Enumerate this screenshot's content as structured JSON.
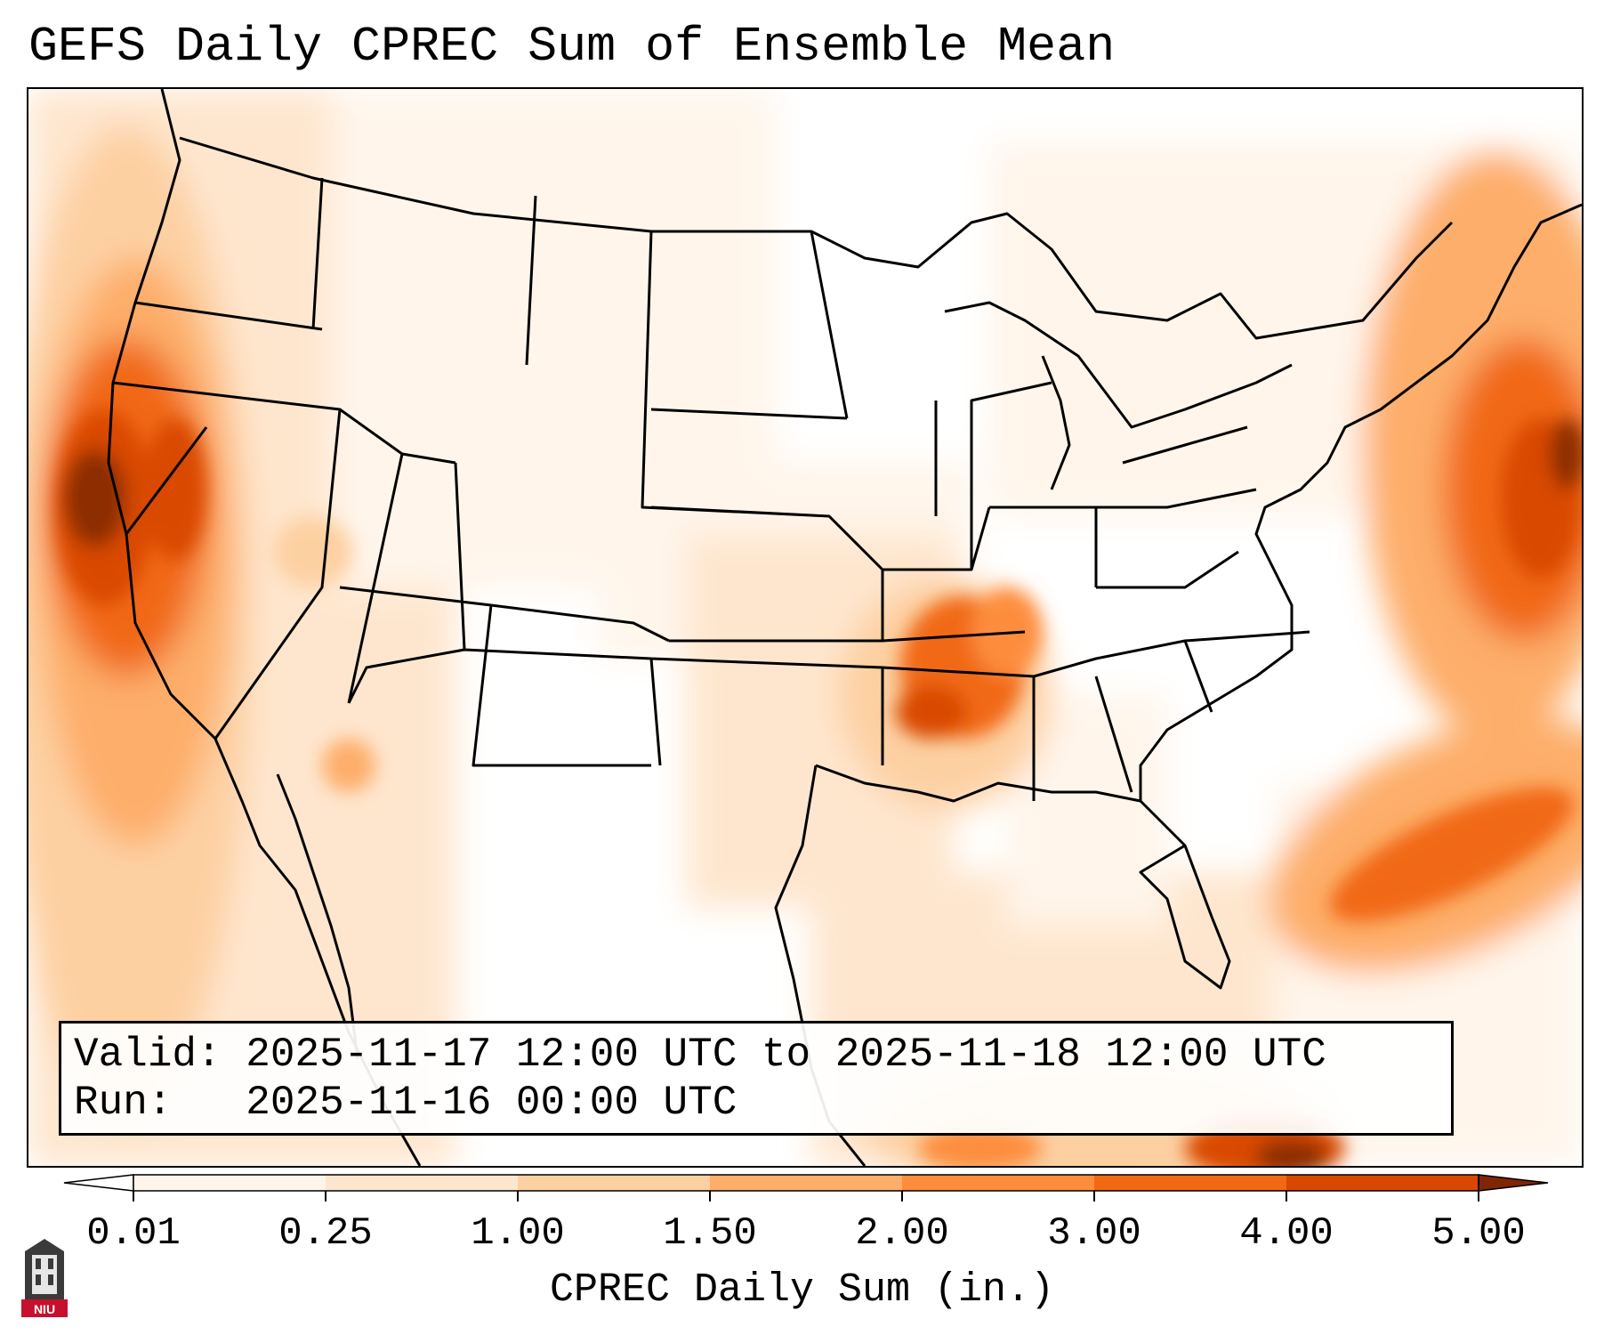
{
  "title": "GEFS Daily CPREC Sum of Ensemble Mean",
  "info": {
    "valid_label": "Valid:",
    "valid_value": "2025-11-17 12:00 UTC to 2025-11-18 12:00 UTC",
    "run_label": "Run:",
    "run_value": "2025-11-16 00:00 UTC"
  },
  "colorbar": {
    "label": "CPREC Daily Sum (in.)",
    "ticks": [
      "0.01",
      "0.25",
      "1.00",
      "1.50",
      "2.00",
      "3.00",
      "4.00",
      "5.00"
    ],
    "colors": [
      "#fff5eb",
      "#fee6ce",
      "#fdd0a2",
      "#fdae6b",
      "#fd8d3c",
      "#f16913",
      "#d94801",
      "#8c2d04"
    ],
    "under_color": "#ffffff",
    "over_color": "#7f2704"
  },
  "logo": {
    "text": "NIU",
    "icon": "university-tower-icon"
  },
  "map": {
    "projection": "lambert-conformal",
    "region": "Continental United States",
    "precip_areas": [
      {
        "region": "Pacific coast off northern California",
        "level": "5.00"
      },
      {
        "region": "Atlantic off New England",
        "level": "4.00"
      },
      {
        "region": "Atlantic east of Southeast coast",
        "level": "3.00"
      },
      {
        "region": "Arkansas / southern Missouri",
        "level": "2.00"
      },
      {
        "region": "Gulf of Mexico south / Cuba",
        "level": "4.00"
      }
    ]
  }
}
